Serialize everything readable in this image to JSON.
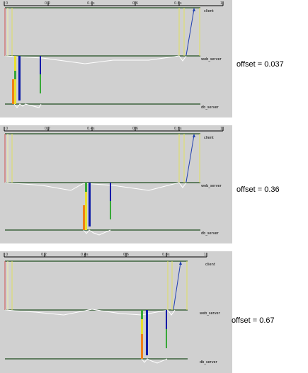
{
  "ruler": {
    "ticks": [
      "0",
      "0.2",
      "0.4",
      "0.6",
      "0.8",
      "1"
    ],
    "tick_suffix": "s"
  },
  "lanes": [
    "client",
    "web_server",
    "db_server"
  ],
  "colors": {
    "background": "#d0d0d0",
    "lane_line": "#1f4d1f",
    "request_arrow": "#1f3fb0",
    "client_span": "#e0e060",
    "error_marker": "#d05050",
    "blue_bar": "#0a1aa8",
    "green_bar": "#38a838",
    "yellow_bar": "#e8e030",
    "orange_bar": "#f08018"
  },
  "panels": [
    {
      "id": "panel-1",
      "offset_label": "offset = 0.037",
      "offset": 0.037
    },
    {
      "id": "panel-2",
      "offset_label": "offset = 0.36",
      "offset": 0.36
    },
    {
      "id": "panel-3",
      "offset_label": "offset = 0.67",
      "offset": 0.67
    }
  ]
}
